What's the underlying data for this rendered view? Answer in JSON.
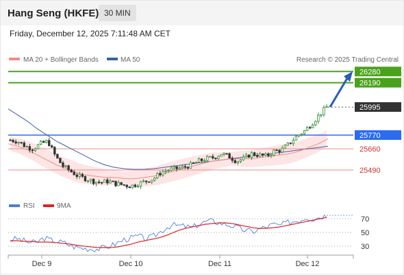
{
  "header": {
    "instrument": "Hang Seng (HKFE)",
    "interval": "30 MIN",
    "datetime": "Friday, December 12, 2025 7:11:48 AM CET"
  },
  "legend": {
    "ma20_label": "MA 20 + Bollinger Bands",
    "ma50_label": "MA 50",
    "credit": "Research © 2025 Trading Central"
  },
  "rsi_legend": {
    "rsi_label": "RSI",
    "ma9_label": "9MA"
  },
  "colors": {
    "ma20": "#f28b8b",
    "bollinger_fill": "#fde0e0",
    "ma50": "#3b5fa8",
    "target_line": "#4aa21c",
    "pivot_line": "#2a6cf0",
    "support_line": "#f08a8a",
    "last_price_box": "#333333",
    "rsi": "#4a7fd8",
    "rsi_ma": "#e02020",
    "candle_up": "#2f8a2f",
    "candle_down": "#333333",
    "arrow": "#2a5cb8"
  },
  "chart_data": [
    {
      "type": "candlestick",
      "x_ticks": [
        "Dec 9",
        "Dec 10",
        "Dec 11",
        "Dec 12"
      ],
      "ylim": [
        25280,
        26320
      ],
      "levels": [
        {
          "value": 26280,
          "label": "26280",
          "kind": "target"
        },
        {
          "value": 26190,
          "label": "26190",
          "kind": "target"
        },
        {
          "value": 25995,
          "label": "25995",
          "kind": "last"
        },
        {
          "value": 25770,
          "label": "25770",
          "kind": "pivot"
        },
        {
          "value": 25660,
          "label": "25660",
          "kind": "support"
        },
        {
          "value": 25490,
          "label": "25490",
          "kind": "support"
        }
      ],
      "price_path": [
        25730,
        25720,
        25680,
        25660,
        25700,
        25720,
        25600,
        25520,
        25480,
        25440,
        25420,
        25400,
        25390,
        25400,
        25380,
        25370,
        25360,
        25380,
        25400,
        25420,
        25470,
        25490,
        25500,
        25510,
        25530,
        25560,
        25580,
        25590,
        25620,
        25600,
        25560,
        25580,
        25620,
        25610,
        25600,
        25640,
        25650,
        25700,
        25760,
        25800,
        25860,
        25930,
        25995
      ],
      "ma20": [
        25700,
        25680,
        25650,
        25610,
        25570,
        25530,
        25500,
        25470,
        25450,
        25440,
        25430,
        25430,
        25420,
        25420,
        25430,
        25440,
        25460,
        25480,
        25500,
        25520,
        25540,
        25560,
        25570,
        25580,
        25580,
        25580,
        25590,
        25600,
        25610,
        25620,
        25640,
        25670,
        25700,
        25740
      ],
      "ma50": [
        25980,
        25930,
        25880,
        25820,
        25770,
        25720,
        25680,
        25640,
        25600,
        25560,
        25530,
        25510,
        25500,
        25495,
        25495,
        25500,
        25510,
        25520,
        25530,
        25540,
        25550,
        25560,
        25570,
        25580,
        25590,
        25600,
        25610,
        25620,
        25630,
        25640,
        25650,
        25660,
        25670,
        25680
      ],
      "arrow_target": 26280
    },
    {
      "type": "line",
      "name": "RSI",
      "ylim": [
        20,
        80
      ],
      "y_ticks": [
        70,
        50,
        30
      ],
      "series": [
        {
          "name": "RSI",
          "values": [
            39,
            41,
            38,
            35,
            36,
            42,
            39,
            37,
            35,
            31,
            28,
            27,
            26,
            26,
            28,
            31,
            35,
            40,
            42,
            45,
            41,
            43,
            49,
            56,
            61,
            60,
            59,
            57,
            62,
            66,
            67,
            64,
            62,
            60,
            56,
            53,
            51,
            55,
            58,
            62,
            60,
            64,
            66,
            68,
            72,
            70,
            73,
            75
          ]
        },
        {
          "name": "9MA",
          "values": [
            38,
            38,
            37,
            37,
            36,
            36,
            36,
            35,
            34,
            33,
            31,
            30,
            29,
            28,
            28,
            28,
            29,
            31,
            33,
            36,
            38,
            40,
            42,
            45,
            49,
            53,
            56,
            58,
            60,
            62,
            63,
            64,
            64,
            63,
            61,
            59,
            57,
            56,
            56,
            57,
            58,
            60,
            62,
            64,
            66,
            68,
            70,
            72
          ]
        }
      ]
    }
  ]
}
